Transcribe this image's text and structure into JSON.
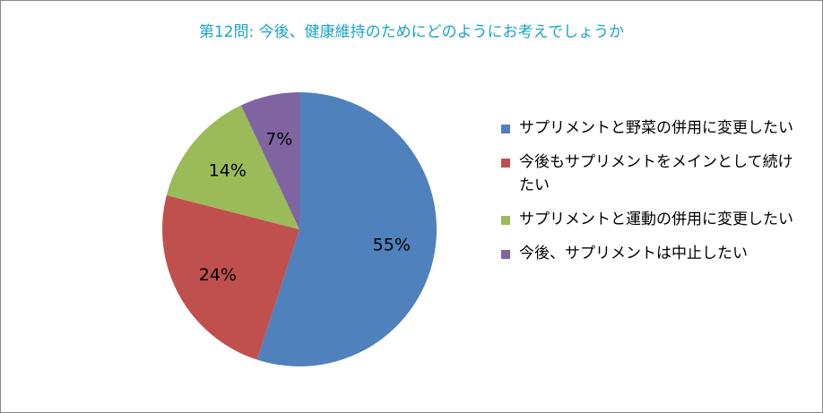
{
  "chart_data": {
    "type": "pie",
    "title": "第12問: 今後、健康維持のためにどのようにお考えでしょうか",
    "slices": [
      {
        "label": "サプリメントと野菜の併用に変更したい",
        "value": 55,
        "display": "55%",
        "color": "#4f81bd"
      },
      {
        "label": "今後もサプリメントをメインとして続けたい",
        "value": 24,
        "display": "24%",
        "color": "#c0504d"
      },
      {
        "label": "サプリメントと運動の併用に変更したい",
        "value": 14,
        "display": "14%",
        "color": "#9bbb59"
      },
      {
        "label": "今後、サプリメントは中止したい",
        "value": 7,
        "display": "7%",
        "color": "#8064a2"
      }
    ],
    "legend_position": "right"
  }
}
